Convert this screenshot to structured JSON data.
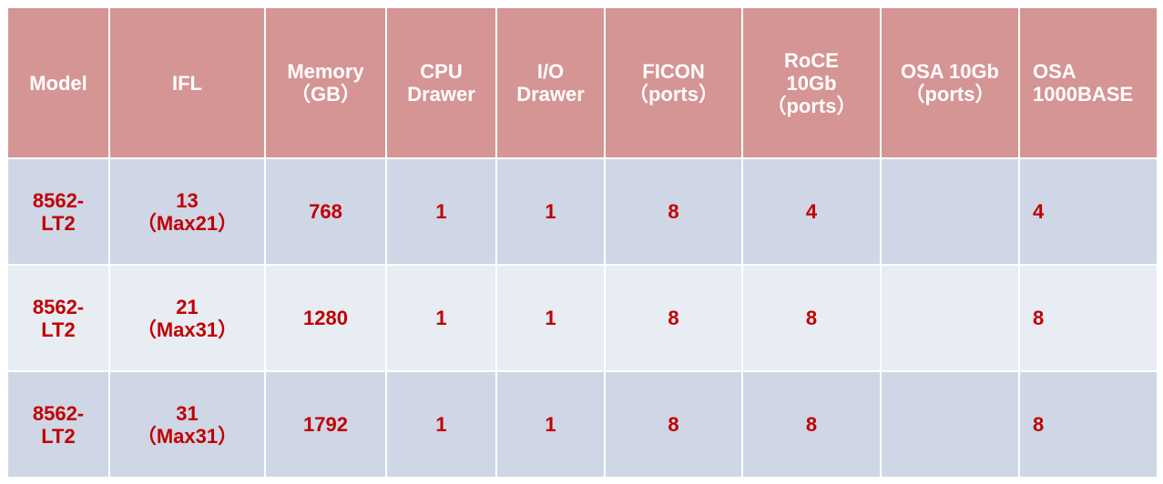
{
  "colors": {
    "header_bg": "#D59594",
    "row_odd_bg": "#CFD6E5",
    "row_even_bg": "#E8ECF3",
    "cell_text": "#C00000",
    "header_text": "#FFFFFF"
  },
  "headers": [
    [
      "Model"
    ],
    [
      "IFL"
    ],
    [
      "Memory",
      "（GB）"
    ],
    [
      "CPU",
      "Drawer"
    ],
    [
      "I/O",
      "Drawer"
    ],
    [
      "FICON",
      "（ports）"
    ],
    [
      "RoCE",
      "10Gb",
      "（ports）"
    ],
    [
      "OSA 10Gb",
      "（ports）"
    ],
    [
      "OSA",
      "1000BASE"
    ]
  ],
  "rows": [
    [
      [
        "8562-",
        "LT2"
      ],
      [
        "13",
        "（Max21）"
      ],
      [
        "768"
      ],
      [
        "1"
      ],
      [
        "1"
      ],
      [
        "8"
      ],
      [
        "4"
      ],
      [
        ""
      ],
      [
        "4"
      ]
    ],
    [
      [
        "8562-",
        "LT2"
      ],
      [
        "21",
        "（Max31）"
      ],
      [
        "1280"
      ],
      [
        "1"
      ],
      [
        "1"
      ],
      [
        "8"
      ],
      [
        "8"
      ],
      [
        ""
      ],
      [
        "8"
      ]
    ],
    [
      [
        "8562-",
        "LT2"
      ],
      [
        "31",
        "（Max31）"
      ],
      [
        "1792"
      ],
      [
        "1"
      ],
      [
        "1"
      ],
      [
        "8"
      ],
      [
        "8"
      ],
      [
        ""
      ],
      [
        "8"
      ]
    ]
  ]
}
